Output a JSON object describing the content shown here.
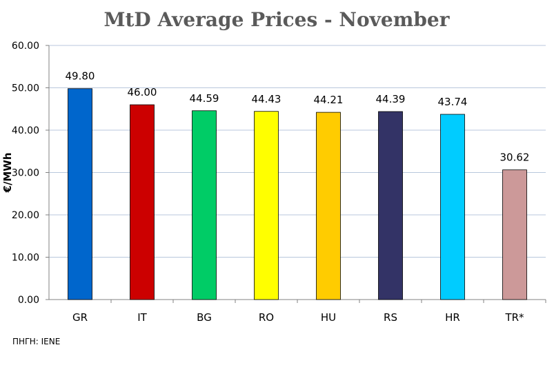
{
  "chart_data": {
    "type": "bar",
    "title": "MtD Average Prices - November",
    "xlabel": "",
    "ylabel": "€/MWh",
    "ylim": [
      0,
      60
    ],
    "yticks": [
      "0.00",
      "10.00",
      "20.00",
      "30.00",
      "40.00",
      "50.00",
      "60.00"
    ],
    "grid": true,
    "categories": [
      "GR",
      "IT",
      "BG",
      "RO",
      "HU",
      "RS",
      "HR",
      "TR*"
    ],
    "values": [
      49.8,
      46.0,
      44.59,
      44.43,
      44.21,
      44.39,
      43.74,
      30.62
    ],
    "data_labels": [
      "49.80",
      "46.00",
      "44.59",
      "44.43",
      "44.21",
      "44.39",
      "43.74",
      "30.62"
    ],
    "colors": [
      "#0066cc",
      "#cc0000",
      "#00cc66",
      "#ffff00",
      "#ffcc00",
      "#333366",
      "#00ccff",
      "#cc9999"
    ]
  },
  "source": "ΠΗΓΗ: IENE"
}
